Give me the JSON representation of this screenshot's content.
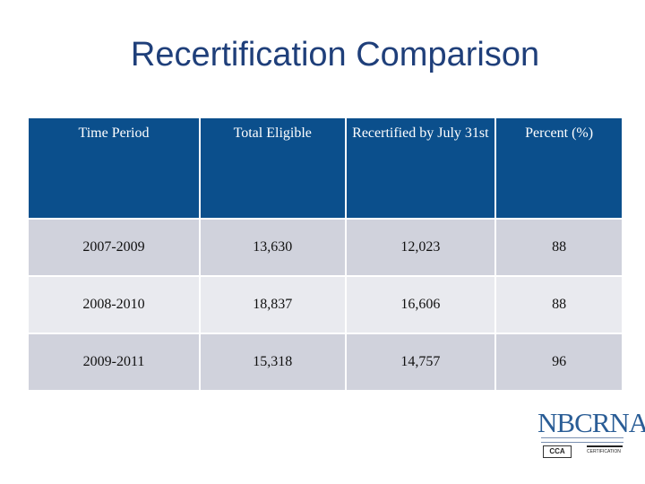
{
  "title": "Recertification Comparison",
  "table": {
    "headers": [
      "Time Period",
      "Total Eligible",
      "Recertified by July 31st",
      "Percent (%)"
    ],
    "rows": [
      [
        "2007-2009",
        "13,630",
        "12,023",
        "88"
      ],
      [
        "2008-2010",
        "18,837",
        "16,606",
        "88"
      ],
      [
        "2009-2011",
        "15,318",
        "14,757",
        "96"
      ]
    ]
  },
  "logo": {
    "text": "NBCRNA",
    "seal_a": "CCA",
    "seal_b": "CERTIFICATION"
  }
}
